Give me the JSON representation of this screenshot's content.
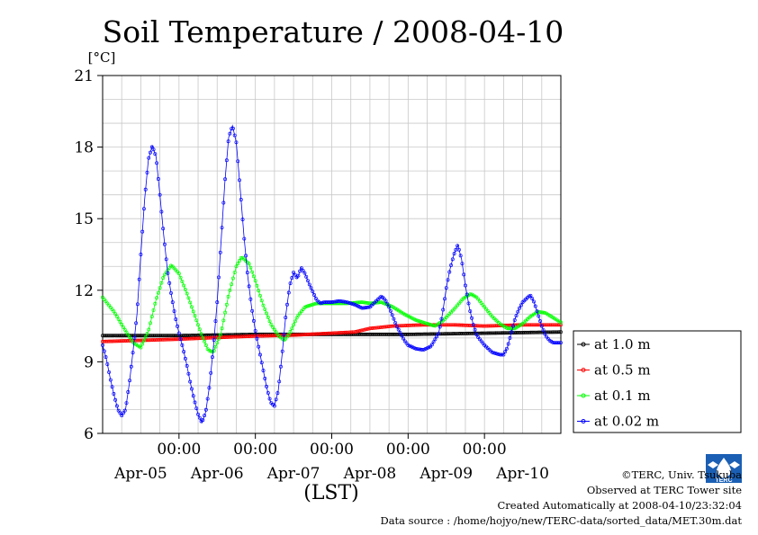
{
  "chart_data": {
    "type": "line",
    "title": "Soil Temperature / 2008-04-10",
    "ylabel": "[°C]",
    "xlabel": "(LST)",
    "x_range_days": [
      0.0,
      6.0
    ],
    "ylim": [
      6,
      21
    ],
    "yticks": [
      6,
      9,
      12,
      15,
      18,
      21
    ],
    "grid": true,
    "legend_placement": "right",
    "time_ticks": [
      {
        "day": 1,
        "label": "00:00"
      },
      {
        "day": 2,
        "label": "00:00"
      },
      {
        "day": 3,
        "label": "00:00"
      },
      {
        "day": 4,
        "label": "00:00"
      },
      {
        "day": 5,
        "label": "00:00"
      }
    ],
    "date_labels": [
      {
        "day": 0.5,
        "label": "Apr-05"
      },
      {
        "day": 1.5,
        "label": "Apr-06"
      },
      {
        "day": 2.5,
        "label": "Apr-07"
      },
      {
        "day": 3.5,
        "label": "Apr-08"
      },
      {
        "day": 4.5,
        "label": "Apr-09"
      },
      {
        "day": 5.5,
        "label": "Apr-10"
      }
    ],
    "series": [
      {
        "name": "at 1.0 m",
        "color": "#000000",
        "points": [
          [
            0.0,
            10.1
          ],
          [
            1.0,
            10.1
          ],
          [
            2.0,
            10.15
          ],
          [
            3.0,
            10.15
          ],
          [
            4.0,
            10.15
          ],
          [
            5.0,
            10.2
          ],
          [
            6.0,
            10.25
          ]
        ]
      },
      {
        "name": "at 0.5 m",
        "color": "#ff0000",
        "points": [
          [
            0.0,
            9.85
          ],
          [
            0.5,
            9.9
          ],
          [
            1.0,
            9.95
          ],
          [
            1.5,
            10.02
          ],
          [
            2.0,
            10.08
          ],
          [
            2.5,
            10.12
          ],
          [
            3.0,
            10.2
          ],
          [
            3.3,
            10.25
          ],
          [
            3.5,
            10.4
          ],
          [
            3.8,
            10.5
          ],
          [
            4.2,
            10.55
          ],
          [
            4.6,
            10.55
          ],
          [
            5.0,
            10.5
          ],
          [
            5.5,
            10.55
          ],
          [
            6.0,
            10.55
          ]
        ]
      },
      {
        "name": "at 0.1 m",
        "color": "#00ff00",
        "points": [
          [
            0.0,
            11.7
          ],
          [
            0.15,
            11.1
          ],
          [
            0.3,
            10.3
          ],
          [
            0.4,
            9.8
          ],
          [
            0.5,
            9.6
          ],
          [
            0.6,
            10.3
          ],
          [
            0.7,
            11.6
          ],
          [
            0.8,
            12.6
          ],
          [
            0.9,
            13.05
          ],
          [
            1.0,
            12.7
          ],
          [
            1.1,
            11.9
          ],
          [
            1.2,
            11.0
          ],
          [
            1.3,
            10.1
          ],
          [
            1.38,
            9.5
          ],
          [
            1.45,
            9.4
          ],
          [
            1.55,
            10.2
          ],
          [
            1.65,
            11.8
          ],
          [
            1.75,
            13.0
          ],
          [
            1.82,
            13.4
          ],
          [
            1.92,
            13.1
          ],
          [
            2.0,
            12.4
          ],
          [
            2.1,
            11.4
          ],
          [
            2.2,
            10.6
          ],
          [
            2.3,
            10.1
          ],
          [
            2.38,
            9.9
          ],
          [
            2.45,
            10.2
          ],
          [
            2.55,
            10.9
          ],
          [
            2.65,
            11.3
          ],
          [
            2.8,
            11.45
          ],
          [
            3.0,
            11.45
          ],
          [
            3.2,
            11.45
          ],
          [
            3.4,
            11.5
          ],
          [
            3.5,
            11.45
          ],
          [
            3.65,
            11.5
          ],
          [
            3.8,
            11.3
          ],
          [
            3.95,
            11.0
          ],
          [
            4.1,
            10.75
          ],
          [
            4.25,
            10.6
          ],
          [
            4.35,
            10.5
          ],
          [
            4.45,
            10.7
          ],
          [
            4.6,
            11.2
          ],
          [
            4.72,
            11.65
          ],
          [
            4.82,
            11.85
          ],
          [
            4.9,
            11.7
          ],
          [
            5.0,
            11.3
          ],
          [
            5.1,
            10.9
          ],
          [
            5.2,
            10.6
          ],
          [
            5.3,
            10.4
          ],
          [
            5.4,
            10.4
          ],
          [
            5.5,
            10.6
          ],
          [
            5.6,
            10.9
          ],
          [
            5.7,
            11.1
          ],
          [
            5.8,
            11.05
          ],
          [
            5.9,
            10.85
          ],
          [
            6.0,
            10.65
          ]
        ]
      },
      {
        "name": "at 0.02 m",
        "color": "#0000ff",
        "points": [
          [
            0.0,
            9.7
          ],
          [
            0.05,
            9.1
          ],
          [
            0.1,
            8.3
          ],
          [
            0.15,
            7.6
          ],
          [
            0.2,
            7.0
          ],
          [
            0.25,
            6.75
          ],
          [
            0.3,
            7.0
          ],
          [
            0.35,
            8.1
          ],
          [
            0.4,
            9.5
          ],
          [
            0.45,
            11.0
          ],
          [
            0.5,
            13.5
          ],
          [
            0.55,
            15.8
          ],
          [
            0.6,
            17.5
          ],
          [
            0.65,
            18.05
          ],
          [
            0.7,
            17.6
          ],
          [
            0.75,
            16.0
          ],
          [
            0.8,
            14.3
          ],
          [
            0.85,
            12.8
          ],
          [
            0.9,
            11.8
          ],
          [
            0.95,
            10.9
          ],
          [
            1.0,
            10.2
          ],
          [
            1.05,
            9.6
          ],
          [
            1.1,
            8.9
          ],
          [
            1.15,
            8.1
          ],
          [
            1.2,
            7.4
          ],
          [
            1.25,
            6.8
          ],
          [
            1.3,
            6.45
          ],
          [
            1.35,
            6.9
          ],
          [
            1.4,
            8.0
          ],
          [
            1.45,
            9.6
          ],
          [
            1.5,
            11.5
          ],
          [
            1.55,
            14.0
          ],
          [
            1.6,
            16.5
          ],
          [
            1.65,
            18.4
          ],
          [
            1.7,
            18.9
          ],
          [
            1.75,
            18.2
          ],
          [
            1.8,
            16.3
          ],
          [
            1.85,
            14.3
          ],
          [
            1.9,
            12.6
          ],
          [
            1.95,
            11.3
          ],
          [
            2.0,
            10.3
          ],
          [
            2.05,
            9.5
          ],
          [
            2.1,
            8.7
          ],
          [
            2.15,
            7.9
          ],
          [
            2.2,
            7.3
          ],
          [
            2.25,
            7.15
          ],
          [
            2.3,
            7.8
          ],
          [
            2.35,
            9.3
          ],
          [
            2.4,
            11.0
          ],
          [
            2.45,
            12.2
          ],
          [
            2.5,
            12.75
          ],
          [
            2.55,
            12.5
          ],
          [
            2.6,
            12.95
          ],
          [
            2.65,
            12.7
          ],
          [
            2.7,
            12.3
          ],
          [
            2.75,
            11.95
          ],
          [
            2.8,
            11.6
          ],
          [
            2.85,
            11.45
          ],
          [
            2.9,
            11.5
          ],
          [
            3.0,
            11.5
          ],
          [
            3.1,
            11.55
          ],
          [
            3.2,
            11.5
          ],
          [
            3.3,
            11.4
          ],
          [
            3.4,
            11.25
          ],
          [
            3.5,
            11.3
          ],
          [
            3.6,
            11.6
          ],
          [
            3.65,
            11.75
          ],
          [
            3.7,
            11.6
          ],
          [
            3.75,
            11.3
          ],
          [
            3.8,
            10.9
          ],
          [
            3.85,
            10.5
          ],
          [
            3.9,
            10.2
          ],
          [
            3.95,
            9.9
          ],
          [
            4.0,
            9.7
          ],
          [
            4.1,
            9.55
          ],
          [
            4.2,
            9.5
          ],
          [
            4.3,
            9.65
          ],
          [
            4.4,
            10.2
          ],
          [
            4.45,
            11.0
          ],
          [
            4.5,
            12.1
          ],
          [
            4.55,
            12.9
          ],
          [
            4.6,
            13.5
          ],
          [
            4.65,
            13.9
          ],
          [
            4.7,
            13.3
          ],
          [
            4.75,
            12.2
          ],
          [
            4.8,
            11.3
          ],
          [
            4.85,
            10.6
          ],
          [
            4.9,
            10.1
          ],
          [
            5.0,
            9.7
          ],
          [
            5.1,
            9.4
          ],
          [
            5.2,
            9.3
          ],
          [
            5.25,
            9.3
          ],
          [
            5.3,
            9.6
          ],
          [
            5.35,
            10.2
          ],
          [
            5.4,
            10.8
          ],
          [
            5.45,
            11.2
          ],
          [
            5.5,
            11.5
          ],
          [
            5.55,
            11.65
          ],
          [
            5.6,
            11.8
          ],
          [
            5.65,
            11.5
          ],
          [
            5.7,
            11.0
          ],
          [
            5.75,
            10.5
          ],
          [
            5.8,
            10.1
          ],
          [
            5.85,
            9.9
          ],
          [
            5.9,
            9.8
          ],
          [
            6.0,
            9.8
          ]
        ]
      }
    ]
  },
  "credits": {
    "copyright": "©TERC, Univ. Tsukuba",
    "observed": "Observed at TERC Tower site",
    "created": "Created Automatically at 2008-04-10/23:32:04",
    "source": "Data source : /home/hojyo/new/TERC-data/sorted_data/MET.30m.dat"
  },
  "logo": {
    "text": "TERC",
    "color": "#1a5fb4"
  }
}
